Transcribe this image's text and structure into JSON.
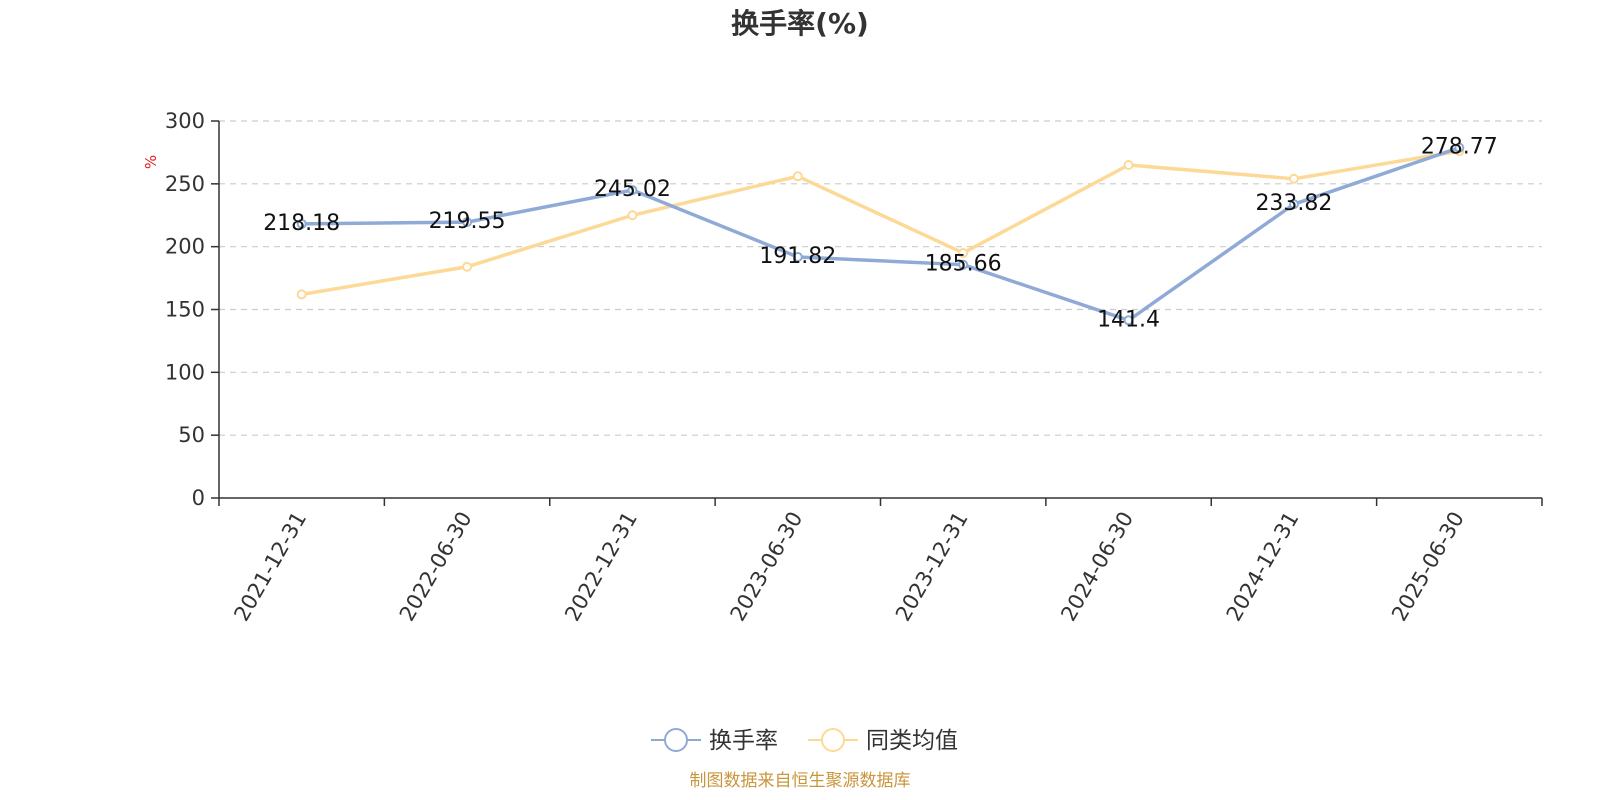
{
  "chart_data": {
    "type": "line",
    "title": "换手率(%)",
    "unit_label": "%",
    "categories": [
      "2021-12-31",
      "2022-06-30",
      "2022-12-31",
      "2023-06-30",
      "2023-12-31",
      "2024-06-30",
      "2024-12-31",
      "2025-06-30"
    ],
    "ylim": [
      0,
      300
    ],
    "yticks": [
      0,
      50,
      100,
      150,
      200,
      250,
      300
    ],
    "grid": true,
    "legend_position": "bottom-center",
    "series": [
      {
        "name": "换手率",
        "color": "#8faad7",
        "values": [
          218.18,
          219.55,
          245.02,
          191.82,
          185.66,
          141.4,
          233.82,
          278.77
        ],
        "labels": [
          "218.18",
          "219.55",
          "245.02",
          "191.82",
          "185.66",
          "141.4",
          "233.82",
          "278.77"
        ],
        "show_labels": true
      },
      {
        "name": "同类均值",
        "color": "#fcd996",
        "values": [
          162,
          184,
          225,
          256,
          195,
          265,
          254,
          276
        ],
        "show_labels": false
      }
    ],
    "source": "制图数据来自恒生聚源数据库"
  }
}
